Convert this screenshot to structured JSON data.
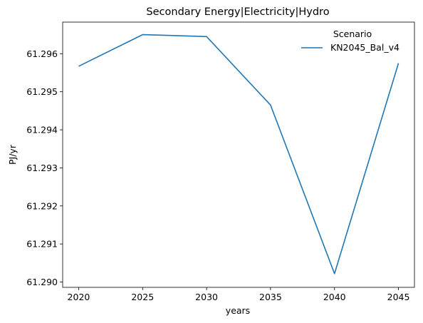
{
  "chart_data": {
    "type": "line",
    "title": "Secondary Energy|Electricity|Hydro",
    "xlabel": "years",
    "ylabel": "PJ/yr",
    "x": [
      2020,
      2025,
      2030,
      2035,
      2040,
      2045
    ],
    "x_ticks": [
      "2020",
      "2025",
      "2030",
      "2035",
      "2040",
      "2045"
    ],
    "y_ticks": [
      "61.290",
      "61.291",
      "61.292",
      "61.293",
      "61.294",
      "61.295",
      "61.296"
    ],
    "xlim": [
      2018.75,
      2046.25
    ],
    "ylim": [
      61.28986,
      61.29683
    ],
    "series": [
      {
        "name": "KN2045_Bal_v4",
        "color": "#1f77b4",
        "values": [
          61.29567,
          61.2965,
          61.29645,
          61.29465,
          61.29022,
          61.29575
        ]
      }
    ],
    "legend": {
      "title": "Scenario",
      "location": "upper right"
    },
    "grid": false
  }
}
